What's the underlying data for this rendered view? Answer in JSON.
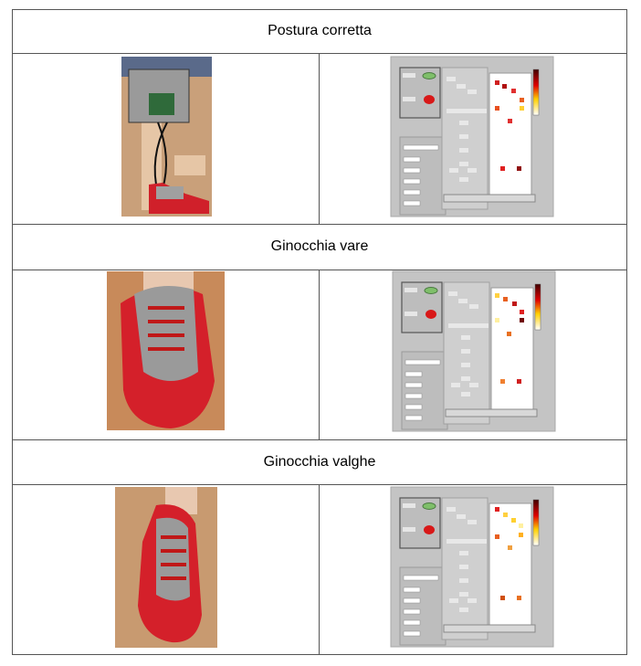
{
  "table": {
    "sections": [
      {
        "title": "Postura corretta"
      },
      {
        "title": "Ginocchia vare"
      },
      {
        "title": "Ginocchia valghe"
      }
    ]
  }
}
